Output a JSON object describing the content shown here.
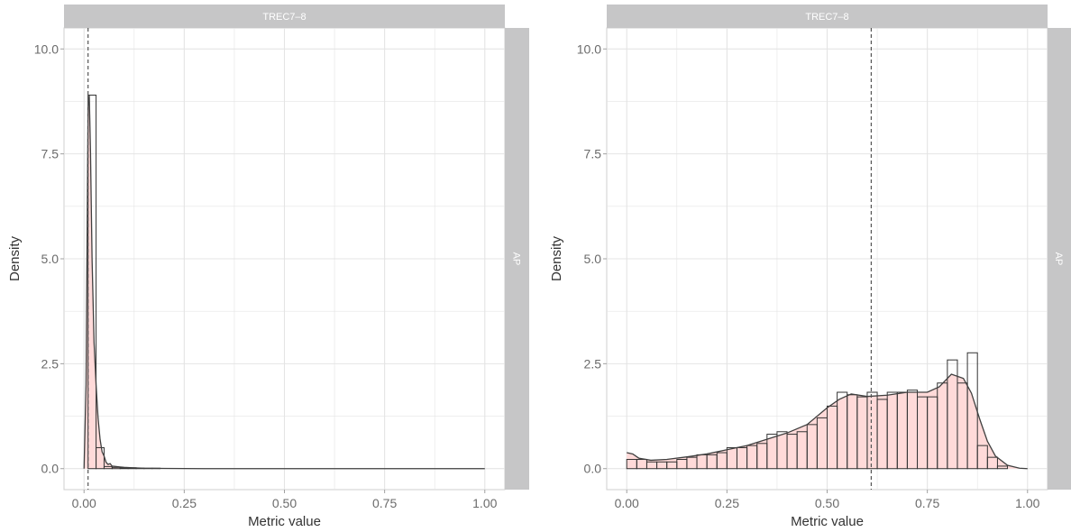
{
  "chart_data": [
    {
      "type": "histogram",
      "facet_top": "TREC7–8",
      "facet_right": "AP",
      "xlabel": "Metric value",
      "ylabel": "Density",
      "xlim": [
        -0.05,
        1.05
      ],
      "ylim": [
        -0.5,
        10.5
      ],
      "x_ticks": [
        0.0,
        0.25,
        0.5,
        0.75,
        1.0
      ],
      "x_tick_labels": [
        "0.00",
        "0.25",
        "0.50",
        "0.75",
        "1.00"
      ],
      "y_ticks": [
        0.0,
        2.5,
        5.0,
        7.5,
        10.0
      ],
      "y_tick_labels": [
        "0.0",
        "2.5",
        "5.0",
        "7.5",
        "10.0"
      ],
      "mean_line": 0.01,
      "bin_width": 0.02,
      "bins": [
        {
          "x0": 0.01,
          "x1": 0.03,
          "density": 8.9
        },
        {
          "x0": 0.03,
          "x1": 0.05,
          "density": 0.5
        },
        {
          "x0": 0.05,
          "x1": 0.07,
          "density": 0.05
        },
        {
          "x0": 0.07,
          "x1": 0.09,
          "density": 0.03
        },
        {
          "x0": 0.09,
          "x1": 0.11,
          "density": 0.02
        },
        {
          "x0": 0.11,
          "x1": 0.13,
          "density": 0.02
        },
        {
          "x0": 0.13,
          "x1": 0.15,
          "density": 0.01
        },
        {
          "x0": 0.15,
          "x1": 0.17,
          "density": 0.01
        },
        {
          "x0": 0.17,
          "x1": 0.19,
          "density": 0.01
        }
      ],
      "density_curve": {
        "x": [
          0.0,
          0.005,
          0.01,
          0.013,
          0.016,
          0.02,
          0.025,
          0.03,
          0.035,
          0.04,
          0.045,
          0.05,
          0.055,
          0.06,
          0.065,
          0.07,
          0.08,
          0.09,
          0.1,
          0.12,
          0.15,
          0.2,
          0.3,
          0.5,
          0.75,
          1.0
        ],
        "y": [
          0.0,
          2.0,
          8.6,
          8.9,
          7.6,
          5.0,
          3.0,
          2.0,
          1.2,
          0.7,
          0.4,
          0.3,
          0.15,
          0.1,
          0.12,
          0.06,
          0.05,
          0.04,
          0.03,
          0.02,
          0.01,
          0.005,
          0.0,
          0.0,
          0.0,
          0.0
        ]
      },
      "colors": {
        "fill": "#ffdad9",
        "curve": "#404040",
        "strip": "#c6c6c7",
        "grid": "#e4e4e4"
      }
    },
    {
      "type": "histogram",
      "facet_top": "TREC7–8",
      "facet_right": "AP",
      "xlabel": "Metric value",
      "ylabel": "Density",
      "xlim": [
        -0.05,
        1.05
      ],
      "ylim": [
        -0.5,
        10.5
      ],
      "x_ticks": [
        0.0,
        0.25,
        0.5,
        0.75,
        1.0
      ],
      "x_tick_labels": [
        "0.00",
        "0.25",
        "0.50",
        "0.75",
        "1.00"
      ],
      "y_ticks": [
        0.0,
        2.5,
        5.0,
        7.5,
        10.0
      ],
      "y_tick_labels": [
        "0.0",
        "2.5",
        "5.0",
        "7.5",
        "10.0"
      ],
      "mean_line": 0.61,
      "bin_width": 0.025,
      "bins": [
        {
          "x0": 0.0,
          "x1": 0.025,
          "density": 0.22
        },
        {
          "x0": 0.025,
          "x1": 0.05,
          "density": 0.22
        },
        {
          "x0": 0.05,
          "x1": 0.075,
          "density": 0.16
        },
        {
          "x0": 0.075,
          "x1": 0.1,
          "density": 0.16
        },
        {
          "x0": 0.1,
          "x1": 0.125,
          "density": 0.16
        },
        {
          "x0": 0.125,
          "x1": 0.15,
          "density": 0.22
        },
        {
          "x0": 0.15,
          "x1": 0.175,
          "density": 0.27
        },
        {
          "x0": 0.175,
          "x1": 0.2,
          "density": 0.33
        },
        {
          "x0": 0.2,
          "x1": 0.225,
          "density": 0.33
        },
        {
          "x0": 0.225,
          "x1": 0.25,
          "density": 0.38
        },
        {
          "x0": 0.25,
          "x1": 0.275,
          "density": 0.5
        },
        {
          "x0": 0.275,
          "x1": 0.3,
          "density": 0.5
        },
        {
          "x0": 0.3,
          "x1": 0.325,
          "density": 0.55
        },
        {
          "x0": 0.325,
          "x1": 0.35,
          "density": 0.6
        },
        {
          "x0": 0.35,
          "x1": 0.375,
          "density": 0.82
        },
        {
          "x0": 0.375,
          "x1": 0.4,
          "density": 0.88
        },
        {
          "x0": 0.4,
          "x1": 0.425,
          "density": 0.82
        },
        {
          "x0": 0.425,
          "x1": 0.45,
          "density": 0.88
        },
        {
          "x0": 0.45,
          "x1": 0.475,
          "density": 1.05
        },
        {
          "x0": 0.475,
          "x1": 0.5,
          "density": 1.21
        },
        {
          "x0": 0.5,
          "x1": 0.525,
          "density": 1.49
        },
        {
          "x0": 0.525,
          "x1": 0.55,
          "density": 1.82
        },
        {
          "x0": 0.55,
          "x1": 0.575,
          "density": 1.76
        },
        {
          "x0": 0.575,
          "x1": 0.6,
          "density": 1.71
        },
        {
          "x0": 0.6,
          "x1": 0.625,
          "density": 1.82
        },
        {
          "x0": 0.625,
          "x1": 0.65,
          "density": 1.65
        },
        {
          "x0": 0.65,
          "x1": 0.675,
          "density": 1.82
        },
        {
          "x0": 0.675,
          "x1": 0.7,
          "density": 1.82
        },
        {
          "x0": 0.7,
          "x1": 0.725,
          "density": 1.87
        },
        {
          "x0": 0.725,
          "x1": 0.75,
          "density": 1.71
        },
        {
          "x0": 0.75,
          "x1": 0.775,
          "density": 1.71
        },
        {
          "x0": 0.775,
          "x1": 0.8,
          "density": 2.04
        },
        {
          "x0": 0.8,
          "x1": 0.825,
          "density": 2.59
        },
        {
          "x0": 0.825,
          "x1": 0.85,
          "density": 2.04
        },
        {
          "x0": 0.85,
          "x1": 0.875,
          "density": 2.76
        },
        {
          "x0": 0.875,
          "x1": 0.9,
          "density": 0.55
        },
        {
          "x0": 0.9,
          "x1": 0.925,
          "density": 0.27
        },
        {
          "x0": 0.925,
          "x1": 0.95,
          "density": 0.06
        }
      ],
      "density_curve": {
        "x": [
          0.0,
          0.015,
          0.03,
          0.06,
          0.1,
          0.15,
          0.2,
          0.25,
          0.3,
          0.35,
          0.4,
          0.45,
          0.5,
          0.53,
          0.56,
          0.6,
          0.65,
          0.7,
          0.75,
          0.78,
          0.81,
          0.84,
          0.86,
          0.88,
          0.9,
          0.92,
          0.95,
          0.98,
          1.0
        ],
        "y": [
          0.38,
          0.35,
          0.25,
          0.2,
          0.22,
          0.28,
          0.35,
          0.45,
          0.55,
          0.7,
          0.85,
          1.05,
          1.45,
          1.65,
          1.78,
          1.72,
          1.75,
          1.82,
          1.82,
          1.95,
          2.25,
          2.15,
          1.8,
          1.2,
          0.65,
          0.3,
          0.08,
          0.01,
          0.0
        ]
      },
      "colors": {
        "fill": "#ffdad9",
        "curve": "#404040",
        "strip": "#c6c6c7",
        "grid": "#e4e4e4"
      }
    }
  ]
}
